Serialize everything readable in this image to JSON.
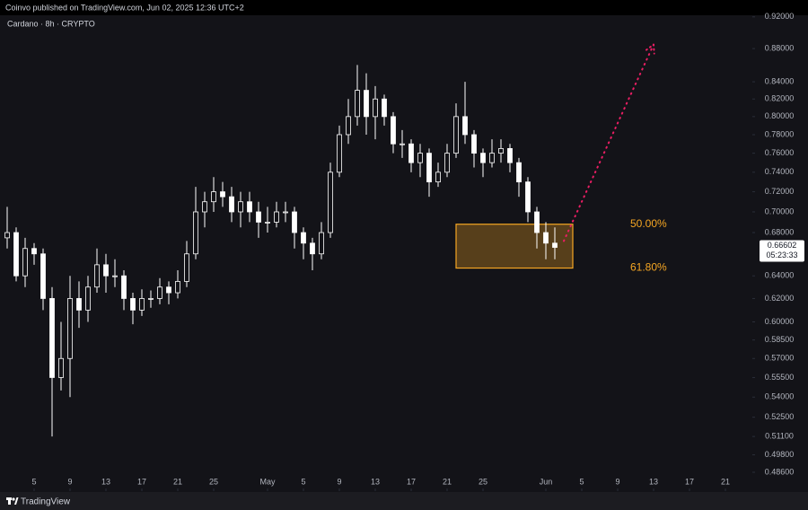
{
  "header": {
    "publisher": "Coinvo published on TradingView.com, Jun 02, 2025 12:36 UTC+2",
    "brand": "TradingView"
  },
  "chart_data": {
    "type": "candlestick",
    "title": "Cardano · 8h · CRYPTO",
    "x": [
      "2025-04-02",
      "2025-04-03",
      "2025-04-04",
      "2025-04-05",
      "2025-04-06",
      "2025-04-07",
      "2025-04-08",
      "2025-04-09",
      "2025-04-10",
      "2025-04-11",
      "2025-04-12",
      "2025-04-13",
      "2025-04-14",
      "2025-04-15",
      "2025-04-16",
      "2025-04-17",
      "2025-04-18",
      "2025-04-19",
      "2025-04-20",
      "2025-04-21",
      "2025-04-22",
      "2025-04-23",
      "2025-04-24",
      "2025-04-25",
      "2025-04-26",
      "2025-04-27",
      "2025-04-28",
      "2025-04-29",
      "2025-04-30",
      "2025-05-01",
      "2025-05-02",
      "2025-05-03",
      "2025-05-04",
      "2025-05-05",
      "2025-05-06",
      "2025-05-07",
      "2025-05-08",
      "2025-05-09",
      "2025-05-10",
      "2025-05-11",
      "2025-05-12",
      "2025-05-13",
      "2025-05-14",
      "2025-05-15",
      "2025-05-16",
      "2025-05-17",
      "2025-05-18",
      "2025-05-19",
      "2025-05-20",
      "2025-05-21",
      "2025-05-22",
      "2025-05-23",
      "2025-05-24",
      "2025-05-25",
      "2025-05-26",
      "2025-05-27",
      "2025-05-28",
      "2025-05-29",
      "2025-05-30",
      "2025-05-31",
      "2025-06-01",
      "2025-06-02"
    ],
    "open": [
      0.675,
      0.68,
      0.64,
      0.665,
      0.66,
      0.62,
      0.555,
      0.57,
      0.62,
      0.61,
      0.63,
      0.65,
      0.64,
      0.64,
      0.62,
      0.61,
      0.62,
      0.62,
      0.63,
      0.625,
      0.635,
      0.66,
      0.7,
      0.71,
      0.72,
      0.715,
      0.7,
      0.71,
      0.7,
      0.69,
      0.69,
      0.7,
      0.7,
      0.68,
      0.67,
      0.66,
      0.68,
      0.74,
      0.78,
      0.8,
      0.83,
      0.8,
      0.82,
      0.8,
      0.77,
      0.77,
      0.75,
      0.76,
      0.73,
      0.74,
      0.76,
      0.8,
      0.78,
      0.76,
      0.75,
      0.76,
      0.765,
      0.75,
      0.73,
      0.7,
      0.68,
      0.67
    ],
    "high": [
      0.705,
      0.685,
      0.675,
      0.67,
      0.665,
      0.63,
      0.6,
      0.64,
      0.635,
      0.64,
      0.665,
      0.66,
      0.655,
      0.645,
      0.625,
      0.628,
      0.627,
      0.638,
      0.635,
      0.645,
      0.672,
      0.725,
      0.72,
      0.735,
      0.73,
      0.725,
      0.72,
      0.72,
      0.71,
      0.705,
      0.71,
      0.71,
      0.705,
      0.685,
      0.675,
      0.69,
      0.75,
      0.79,
      0.82,
      0.86,
      0.85,
      0.835,
      0.825,
      0.805,
      0.785,
      0.775,
      0.77,
      0.765,
      0.75,
      0.77,
      0.815,
      0.84,
      0.785,
      0.765,
      0.775,
      0.775,
      0.77,
      0.755,
      0.735,
      0.705,
      0.69,
      0.685
    ],
    "low": [
      0.665,
      0.635,
      0.63,
      0.65,
      0.61,
      0.511,
      0.545,
      0.54,
      0.595,
      0.6,
      0.625,
      0.625,
      0.63,
      0.61,
      0.598,
      0.605,
      0.612,
      0.615,
      0.615,
      0.62,
      0.63,
      0.655,
      0.685,
      0.7,
      0.705,
      0.69,
      0.685,
      0.69,
      0.675,
      0.68,
      0.685,
      0.69,
      0.665,
      0.655,
      0.645,
      0.655,
      0.675,
      0.735,
      0.77,
      0.79,
      0.78,
      0.775,
      0.79,
      0.76,
      0.755,
      0.74,
      0.735,
      0.715,
      0.725,
      0.735,
      0.755,
      0.77,
      0.745,
      0.735,
      0.745,
      0.75,
      0.74,
      0.715,
      0.69,
      0.665,
      0.655,
      0.655
    ],
    "close": [
      0.68,
      0.64,
      0.665,
      0.66,
      0.62,
      0.555,
      0.57,
      0.62,
      0.61,
      0.63,
      0.65,
      0.64,
      0.64,
      0.62,
      0.61,
      0.62,
      0.62,
      0.63,
      0.625,
      0.635,
      0.66,
      0.7,
      0.71,
      0.72,
      0.715,
      0.7,
      0.71,
      0.7,
      0.69,
      0.69,
      0.7,
      0.7,
      0.68,
      0.67,
      0.66,
      0.68,
      0.74,
      0.78,
      0.8,
      0.83,
      0.8,
      0.82,
      0.8,
      0.77,
      0.77,
      0.75,
      0.76,
      0.73,
      0.74,
      0.76,
      0.8,
      0.78,
      0.76,
      0.75,
      0.76,
      0.765,
      0.75,
      0.73,
      0.7,
      0.68,
      0.67,
      0.66602
    ],
    "countdown": "05:23:33",
    "up_color": "#ffffff",
    "down_color": "#ffffff",
    "log_scale": true,
    "grid": false,
    "xlim": [
      "2025-04-01",
      "2025-06-24"
    ],
    "xticks": [
      {
        "value": "2025-04-05",
        "label": "5"
      },
      {
        "value": "2025-04-09",
        "label": "9"
      },
      {
        "value": "2025-04-13",
        "label": "13"
      },
      {
        "value": "2025-04-17",
        "label": "17"
      },
      {
        "value": "2025-04-21",
        "label": "21"
      },
      {
        "value": "2025-04-25",
        "label": "25"
      },
      {
        "value": "2025-05-01",
        "label": "May"
      },
      {
        "value": "2025-05-05",
        "label": "5"
      },
      {
        "value": "2025-05-09",
        "label": "9"
      },
      {
        "value": "2025-05-13",
        "label": "13"
      },
      {
        "value": "2025-05-17",
        "label": "17"
      },
      {
        "value": "2025-05-21",
        "label": "21"
      },
      {
        "value": "2025-05-25",
        "label": "25"
      },
      {
        "value": "2025-06-01",
        "label": "Jun"
      },
      {
        "value": "2025-06-05",
        "label": "5"
      },
      {
        "value": "2025-06-09",
        "label": "9"
      },
      {
        "value": "2025-06-13",
        "label": "13"
      },
      {
        "value": "2025-06-17",
        "label": "17"
      },
      {
        "value": "2025-06-21",
        "label": "21"
      }
    ],
    "ylim": [
      0.4745,
      0.942
    ],
    "yticks": [
      {
        "value": 0.92,
        "label": "0.92000"
      },
      {
        "value": 0.88,
        "label": "0.88000"
      },
      {
        "value": 0.84,
        "label": "0.84000"
      },
      {
        "value": 0.82,
        "label": "0.82000"
      },
      {
        "value": 0.8,
        "label": "0.80000"
      },
      {
        "value": 0.78,
        "label": "0.78000"
      },
      {
        "value": 0.76,
        "label": "0.76000"
      },
      {
        "value": 0.74,
        "label": "0.74000"
      },
      {
        "value": 0.72,
        "label": "0.72000"
      },
      {
        "value": 0.7,
        "label": "0.70000"
      },
      {
        "value": 0.68,
        "label": "0.68000"
      },
      {
        "value": 0.64,
        "label": "0.64000"
      },
      {
        "value": 0.62,
        "label": "0.62000"
      },
      {
        "value": 0.6,
        "label": "0.60000"
      },
      {
        "value": 0.585,
        "label": "0.58500"
      },
      {
        "value": 0.57,
        "label": "0.57000"
      },
      {
        "value": 0.555,
        "label": "0.55500"
      },
      {
        "value": 0.54,
        "label": "0.54000"
      },
      {
        "value": 0.525,
        "label": "0.52500"
      },
      {
        "value": 0.511,
        "label": "0.51100"
      },
      {
        "value": 0.498,
        "label": "0.49800"
      },
      {
        "value": 0.486,
        "label": "0.48600"
      }
    ],
    "zone": {
      "x": [
        "2025-05-22",
        "2025-06-04"
      ],
      "y": [
        0.688,
        0.647
      ],
      "labels": [
        "50.00%",
        "61.80%"
      ],
      "color": "#f5a623"
    },
    "projection": {
      "x": [
        "2025-06-03",
        "2025-06-13"
      ],
      "y": [
        0.672,
        0.885
      ],
      "color": "#e91e63"
    }
  }
}
